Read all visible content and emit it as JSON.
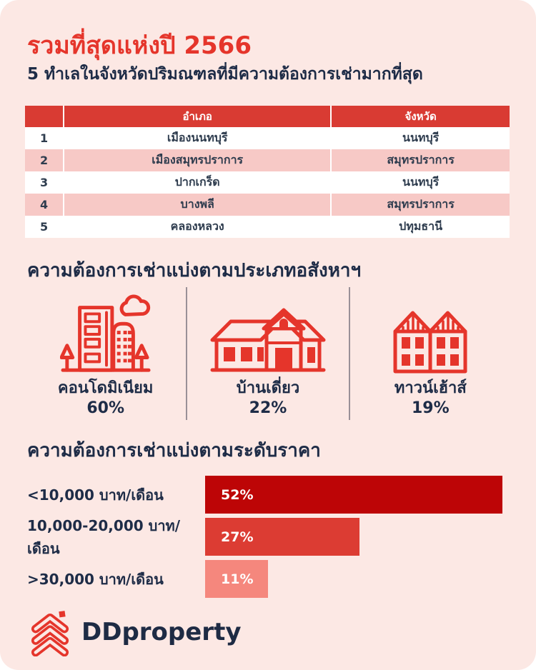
{
  "page": {
    "background": "#fce8e4",
    "accent_red": "#e5352b",
    "navy": "#1e2c47"
  },
  "header": {
    "title": "รวมที่สุดแห่งปี 2566",
    "subtitle": "5 ทำเลในจังหวัดปริมณฑลที่มีความต้องการเช่ามากที่สุด"
  },
  "table": {
    "header_bg": "#d93b33",
    "alt_row_bg": "#f7c9c6",
    "columns": [
      "",
      "อำเภอ",
      "จังหวัด"
    ],
    "rows": [
      [
        "1",
        "เมืองนนทบุรี",
        "นนทบุรี"
      ],
      [
        "2",
        "เมืองสมุทรปราการ",
        "สมุทรปราการ"
      ],
      [
        "3",
        "ปากเกร็ด",
        "นนทบุรี"
      ],
      [
        "4",
        "บางพลี",
        "สมุทรปราการ"
      ],
      [
        "5",
        "คลองหลวง",
        "ปทุมธานี"
      ]
    ]
  },
  "property_types": {
    "heading": "ความต้องการเช่าแบ่งตามประเภทอสังหาฯ",
    "items": [
      {
        "icon": "condominium-icon",
        "label": "คอนโดมิเนียม",
        "value": "60%"
      },
      {
        "icon": "detached-house-icon",
        "label": "บ้านเดี่ยว",
        "value": "22%"
      },
      {
        "icon": "townhouse-icon",
        "label": "ทาวน์เฮ้าส์",
        "value": "19%"
      }
    ]
  },
  "chart_data": {
    "type": "bar",
    "orientation": "horizontal",
    "title": "ความต้องการเช่าแบ่งตามระดับราคา",
    "categories": [
      "<10,000 บาท/เดือน",
      "10,000-20,000 บาท/เดือน",
      ">30,000 บาท/เดือน"
    ],
    "values": [
      52,
      27,
      11
    ],
    "value_labels": [
      "52%",
      "27%",
      "11%"
    ],
    "bar_colors": [
      "#bd0506",
      "#dc3c33",
      "#f5877d"
    ],
    "xlim": [
      0,
      52
    ],
    "grid": false,
    "legend": false
  },
  "footer": {
    "logo_text": "DDproperty"
  }
}
